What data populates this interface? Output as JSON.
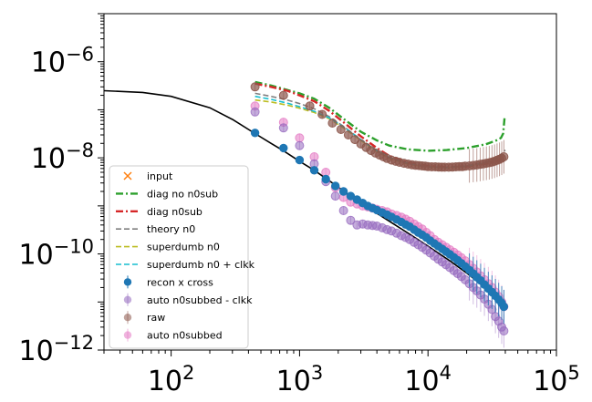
{
  "chart_data": {
    "type": "scatter",
    "xscale": "log",
    "yscale": "log",
    "xlim": [
      30,
      100000
    ],
    "ylim": [
      1e-12,
      1e-05
    ],
    "grid": false,
    "legend_position": "lower-left",
    "title": "",
    "xlabel": "",
    "ylabel": "",
    "x_tick_labels": [
      {
        "value": 100,
        "base": "10",
        "exp": "2"
      },
      {
        "value": 1000,
        "base": "10",
        "exp": "3"
      },
      {
        "value": 10000,
        "base": "10",
        "exp": "4"
      },
      {
        "value": 100000,
        "base": "10",
        "exp": "5"
      }
    ],
    "y_tick_labels": [
      {
        "value": 1e-12,
        "base": "10",
        "exp": "−12"
      },
      {
        "value": 1e-10,
        "base": "10",
        "exp": "−10"
      },
      {
        "value": 1e-08,
        "base": "10",
        "exp": "−8"
      },
      {
        "value": 1e-06,
        "base": "10",
        "exp": "−6"
      }
    ],
    "legend": [
      {
        "label": "input",
        "kind": "x",
        "color": "#ff7f0e"
      },
      {
        "label": "diag no n0sub",
        "kind": "dashdot",
        "color": "#2ca02c"
      },
      {
        "label": "diag n0sub",
        "kind": "dashdot",
        "color": "#d62728"
      },
      {
        "label": "theory n0",
        "kind": "dashed",
        "color": "#7f7f7f"
      },
      {
        "label": "superdumb n0",
        "kind": "dashed",
        "color": "#bcbd22"
      },
      {
        "label": "superdumb n0 + clkk",
        "kind": "dashed",
        "color": "#17becf"
      },
      {
        "label": "recon x cross",
        "kind": "errorpoint",
        "color": "#1f77b4"
      },
      {
        "label": "auto n0subbed - clkk",
        "kind": "errorpoint-faded",
        "color": "#9467bd"
      },
      {
        "label": "raw",
        "kind": "errorpoint-faded",
        "color": "#8c564b"
      },
      {
        "label": "auto n0subbed",
        "kind": "errorpoint-faded",
        "color": "#e377c2"
      }
    ],
    "series": [
      {
        "id": "theory",
        "style": "line",
        "color": "#000000",
        "x": [
          30,
          60,
          100,
          200,
          300,
          450,
          600,
          750,
          1000,
          1300,
          1800,
          2500,
          3500,
          5000,
          7000,
          10000,
          15000,
          20000,
          25000,
          30000,
          35000,
          38000
        ],
        "y": [
          2.5e-07,
          2.3e-07,
          1.9e-07,
          1.1e-07,
          6.3e-08,
          3.2e-08,
          2e-08,
          1.4e-08,
          8.5e-09,
          5.5e-09,
          3e-09,
          1.6e-09,
          8.8e-10,
          4.8e-10,
          2.7e-10,
          1.45e-10,
          7e-11,
          4e-11,
          2.5e-11,
          1.6e-11,
          1.1e-11,
          8e-12
        ]
      },
      {
        "id": "diag_no_n0sub",
        "style": "dashdot",
        "color": "#2ca02c",
        "x": [
          450,
          600,
          800,
          1000,
          1300,
          1700,
          2200,
          3000,
          4000,
          5000,
          7000,
          10000,
          14000,
          20000,
          28000,
          34000,
          37000,
          38500,
          39500
        ],
        "y": [
          3.8e-07,
          3.2e-07,
          2.6e-07,
          2.2e-07,
          1.7e-07,
          1.1e-07,
          6.5e-08,
          3.5e-08,
          2.3e-08,
          1.8e-08,
          1.5e-08,
          1.4e-08,
          1.45e-08,
          1.6e-08,
          1.9e-08,
          2.3e-08,
          2.6e-08,
          3.2e-08,
          7e-08
        ]
      },
      {
        "id": "diag_n0sub",
        "style": "dashdot",
        "color": "#d62728",
        "x": [
          450,
          600,
          800,
          1000,
          1300,
          1700,
          2200,
          3000,
          4000,
          5000,
          7000,
          10000,
          14000,
          20000,
          28000,
          34000,
          37000,
          39000
        ],
        "y": [
          3.5e-07,
          3e-07,
          2.5e-07,
          2e-07,
          1.5e-07,
          9.5e-08,
          5.5e-08,
          2.8e-08,
          1.6e-08,
          1.1e-08,
          8e-09,
          6.8e-09,
          6.4e-09,
          6.6e-09,
          7.5e-09,
          8.5e-09,
          9.5e-09,
          1.1e-08
        ]
      },
      {
        "id": "theory_n0",
        "style": "dashed",
        "color": "#7f7f7f",
        "x": [
          450,
          600,
          800,
          1000,
          1300,
          1700,
          2200,
          3000,
          4000,
          5000,
          7000,
          10000,
          14000,
          20000,
          28000,
          34000,
          38000,
          40000
        ],
        "y": [
          2.2e-07,
          1.9e-07,
          1.6e-07,
          1.35e-07,
          1.05e-07,
          7.2e-08,
          4.5e-08,
          2.4e-08,
          1.4e-08,
          1e-08,
          7.5e-09,
          6.5e-09,
          6.3e-09,
          6.8e-09,
          8.2e-09,
          1e-08,
          1.25e-08,
          1.45e-08
        ]
      },
      {
        "id": "superdumb_n0",
        "style": "dashed",
        "color": "#bcbd22",
        "x": [
          450,
          600,
          800,
          1000,
          1300,
          1700,
          2200,
          3000,
          4000,
          5000,
          7000,
          10000,
          14000,
          20000,
          28000,
          34000,
          38000
        ],
        "y": [
          1.6e-07,
          1.45e-07,
          1.25e-07,
          1.08e-07,
          8.8e-08,
          6.5e-08,
          4.2e-08,
          2.3e-08,
          1.35e-08,
          9.8e-09,
          7.4e-09,
          6.4e-09,
          6.2e-09,
          6.6e-09,
          7.8e-09,
          9.5e-09,
          1.15e-08
        ]
      },
      {
        "id": "superdumb_n0_clkk",
        "style": "dashed",
        "color": "#17becf",
        "x": [
          450,
          600,
          800,
          1000,
          1300,
          1700,
          2200,
          3000,
          4000,
          5000,
          7000,
          10000,
          14000,
          20000,
          28000,
          34000,
          38000
        ],
        "y": [
          1.9e-07,
          1.65e-07,
          1.38e-07,
          1.16e-07,
          9.3e-08,
          6.8e-08,
          4.4e-08,
          2.4e-08,
          1.4e-08,
          1.02e-08,
          7.6e-09,
          6.5e-09,
          6.3e-09,
          6.7e-09,
          7.9e-09,
          9.6e-09,
          1.17e-08
        ]
      },
      {
        "id": "raw",
        "style": "points",
        "color": "#8c564b",
        "alpha": 0.7,
        "r": 4.5,
        "x": [
          450,
          750,
          1200,
          1500,
          1800,
          2100,
          2400,
          2700,
          3000,
          3300,
          3600,
          3900,
          4200,
          4500,
          4800,
          5200,
          5600,
          6000,
          6500,
          7000,
          7500,
          8000,
          8500,
          9000,
          9500,
          10000,
          10700,
          11400,
          12100,
          12800,
          13500,
          14500,
          15500,
          16500,
          17500,
          18500,
          19500,
          21000,
          22500,
          24000,
          25500,
          27000,
          28500,
          30000,
          31500,
          33000,
          34500,
          36000,
          37500,
          39000
        ],
        "y": [
          3e-07,
          2e-07,
          1.2e-07,
          8e-08,
          5.3e-08,
          3.9e-08,
          3e-08,
          2.4e-08,
          1.95e-08,
          1.65e-08,
          1.42e-08,
          1.26e-08,
          1.14e-08,
          1.05e-08,
          9.7e-09,
          9e-09,
          8.5e-09,
          8.1e-09,
          7.7e-09,
          7.4e-09,
          7.2e-09,
          7e-09,
          6.9e-09,
          6.8e-09,
          6.7e-09,
          6.6e-09,
          6.5e-09,
          6.5e-09,
          6.45e-09,
          6.4e-09,
          6.4e-09,
          6.4e-09,
          6.45e-09,
          6.5e-09,
          6.55e-09,
          6.6e-09,
          6.7e-09,
          6.8e-09,
          6.95e-09,
          7.1e-09,
          7.3e-09,
          7.5e-09,
          7.7e-09,
          7.9e-09,
          8.2e-09,
          8.5e-09,
          8.9e-09,
          9.3e-09,
          9.8e-09,
          1.05e-08
        ]
      },
      {
        "id": "auto_n0subbed",
        "style": "points",
        "color": "#e377c2",
        "alpha": 0.55,
        "r": 4.5,
        "x": [
          450,
          750,
          1000,
          1300,
          1600,
          1900,
          2200,
          2500,
          2800,
          3100,
          3400,
          3700,
          4000,
          4400,
          4800,
          5200,
          5700,
          6200,
          6700,
          7200,
          7800,
          8400,
          9000,
          9700,
          10400,
          11200,
          12000,
          12900,
          13800,
          14800,
          15900,
          17000,
          18200,
          19500,
          21000,
          22500,
          24000,
          25700,
          27500,
          29500,
          31500,
          33500,
          35500,
          37500,
          39000
        ],
        "y": [
          1.2e-07,
          5.5e-08,
          2.6e-08,
          1.05e-08,
          5e-09,
          2.4e-09,
          1.5e-09,
          1.2e-09,
          1.1e-09,
          1e-09,
          9.5e-10,
          9e-10,
          8.5e-10,
          8e-10,
          7.5e-10,
          6.8e-10,
          6.3e-10,
          5.8e-10,
          5.3e-10,
          4.8e-10,
          4.2e-10,
          3.7e-10,
          3.3e-10,
          2.8e-10,
          2.4e-10,
          2e-10,
          1.75e-10,
          1.55e-10,
          1.38e-10,
          1.22e-10,
          1.08e-10,
          9.5e-11,
          8.3e-11,
          7.2e-11,
          6e-11,
          5e-11,
          4.2e-11,
          3.5e-11,
          2.9e-11,
          2.4e-11,
          2e-11,
          1.6e-11,
          1.3e-11,
          1e-11,
          8e-12
        ]
      },
      {
        "id": "auto_n0subbed_clkk",
        "style": "points",
        "color": "#9467bd",
        "alpha": 0.55,
        "r": 4.5,
        "x": [
          450,
          750,
          1000,
          1300,
          1600,
          1900,
          2200,
          2500,
          2800,
          3100,
          3400,
          3700,
          4000,
          4400,
          4800,
          5200,
          5700,
          6200,
          6700,
          7200,
          7800,
          8400,
          9000,
          9700,
          10400,
          11200,
          12000,
          12900,
          13800,
          14800,
          15900,
          17000,
          18200,
          19500,
          21000,
          22500,
          24000,
          25700,
          27500,
          29500,
          31500,
          33500,
          35500,
          37500,
          39000
        ],
        "y": [
          9e-08,
          4.2e-08,
          1.8e-08,
          7.5e-09,
          3.2e-09,
          1.6e-09,
          8e-10,
          5e-10,
          4e-10,
          4.2e-10,
          4e-10,
          3.9e-10,
          3.8e-10,
          3.5e-10,
          3.2e-10,
          3e-10,
          2.7e-10,
          2.4e-10,
          2.2e-10,
          2e-10,
          1.75e-10,
          1.55e-10,
          1.38e-10,
          1.2e-10,
          1.05e-10,
          9e-11,
          7.8e-11,
          6.8e-11,
          6e-11,
          5.2e-11,
          4.5e-11,
          3.9e-11,
          3.4e-11,
          2.9e-11,
          2.4e-11,
          2e-11,
          1.7e-11,
          1.4e-11,
          1.15e-11,
          9e-12,
          7e-12,
          5e-12,
          4e-12,
          3e-12,
          2.5e-12
        ]
      },
      {
        "id": "recon_x_cross",
        "style": "points",
        "color": "#1f77b4",
        "alpha": 1.0,
        "r": 4.2,
        "x": [
          450,
          750,
          1000,
          1300,
          1600,
          1900,
          2200,
          2500,
          2800,
          3100,
          3400,
          3700,
          4000,
          4400,
          4800,
          5200,
          5700,
          6200,
          6700,
          7200,
          7800,
          8400,
          9000,
          9700,
          10400,
          11200,
          12000,
          12900,
          13800,
          14800,
          15900,
          17000,
          18200,
          19500,
          21000,
          22500,
          24000,
          25700,
          27500,
          29500,
          31500,
          33500,
          35500,
          37500,
          39000
        ],
        "y": [
          3.3e-08,
          1.6e-08,
          9e-09,
          5.5e-09,
          3.6e-09,
          2.6e-09,
          2e-09,
          1.6e-09,
          1.35e-09,
          1.15e-09,
          1e-09,
          9e-10,
          8.2e-10,
          7.3e-10,
          6.6e-10,
          5.9e-10,
          5.2e-10,
          4.6e-10,
          4.1e-10,
          3.7e-10,
          3.2e-10,
          2.8e-10,
          2.5e-10,
          2.2e-10,
          1.9e-10,
          1.65e-10,
          1.45e-10,
          1.27e-10,
          1.12e-10,
          9.8e-11,
          8.5e-11,
          7.4e-11,
          6.4e-11,
          5.5e-11,
          4.6e-11,
          3.9e-11,
          3.3e-11,
          2.8e-11,
          2.3e-11,
          1.9e-11,
          1.6e-11,
          1.35e-11,
          1.12e-11,
          9.5e-12,
          8e-12
        ]
      }
    ]
  }
}
